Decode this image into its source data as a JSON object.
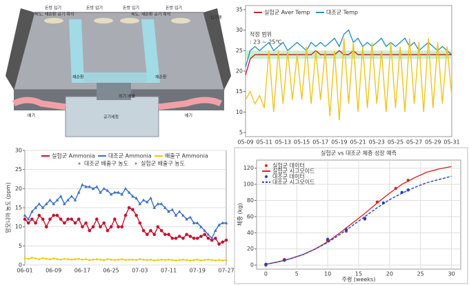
{
  "diagram": {
    "labels": [
      "돈방 입기",
      "돈방 입기",
      "돈방 입기",
      "돈방 입기",
      "복도, 재순환 공기 희석",
      "복도, 재순환 공기 희석",
      "입기팬",
      "재순환",
      "재순환",
      "외기 배출",
      "공기세정",
      "배기",
      "배기"
    ]
  },
  "chart_data": [
    {
      "type": "line",
      "annotation": [
        "적정 범위",
        ": 23 ~ 25℃"
      ],
      "band": [
        23,
        25
      ],
      "legend": "upper left",
      "grid": false,
      "categories": [
        "05-09",
        null,
        null,
        null,
        "05-11",
        null,
        null,
        null,
        "05-13",
        null,
        null,
        null,
        "05-15",
        null,
        null,
        null,
        "05-17",
        null,
        null,
        null,
        "05-19",
        null,
        null,
        null,
        "05-21",
        null,
        null,
        null,
        "05-23",
        null,
        null,
        null,
        "05-25",
        null,
        null,
        null,
        "05-27",
        null,
        null,
        null,
        "05-29",
        null,
        null,
        null,
        "05-31"
      ],
      "ylim": [
        4,
        36
      ],
      "yticks": [
        5,
        10,
        15,
        20,
        25,
        30,
        35
      ],
      "series": [
        {
          "name": "실험군 Aver Temp",
          "color": "#c0282d",
          "values": [
            19,
            23,
            24,
            24,
            24,
            24,
            24,
            24,
            24,
            24,
            24,
            24,
            24,
            24,
            24,
            25,
            24,
            24,
            24,
            24,
            25,
            24,
            24,
            25,
            24,
            24,
            24,
            24,
            24,
            24,
            24,
            24,
            24,
            24,
            24,
            24,
            24,
            24,
            24,
            24,
            24,
            24,
            24,
            24,
            24
          ]
        },
        {
          "name": "대조군 Temp",
          "color": "#2a8fc4",
          "values": [
            21,
            25,
            26,
            25,
            26,
            27,
            25,
            26,
            27,
            25,
            26,
            27,
            26,
            25,
            27,
            26,
            27,
            26,
            27,
            28,
            26,
            29,
            30,
            27,
            28,
            26,
            27,
            26,
            27,
            28,
            26,
            27,
            26,
            27,
            28,
            26,
            27,
            25,
            26,
            27,
            26,
            25,
            26,
            25,
            24
          ]
        },
        {
          "color": "#f0c419",
          "values": [
            13,
            15,
            12,
            14,
            11,
            25,
            10,
            25,
            12,
            25,
            13,
            24,
            13,
            26,
            12,
            25,
            13,
            25,
            9,
            25,
            8,
            28,
            12,
            27,
            10,
            26,
            11,
            27,
            12,
            25,
            10,
            27,
            11,
            26,
            10,
            28,
            12,
            27,
            10,
            28,
            11,
            27,
            12,
            26,
            14
          ]
        }
      ]
    },
    {
      "type": "line",
      "y_label": "암모니아 농도 (ppm)",
      "legend": "top",
      "grid": true,
      "legend_extra": [
        "대조군 배출구 농도",
        "실험군 배출구 농도"
      ],
      "categories": [
        "06-01",
        null,
        null,
        null,
        null,
        null,
        null,
        null,
        "06-09",
        null,
        null,
        null,
        null,
        null,
        null,
        null,
        "06-17",
        null,
        null,
        null,
        null,
        null,
        null,
        null,
        "06-25",
        null,
        null,
        null,
        null,
        null,
        null,
        null,
        "07-03",
        null,
        null,
        null,
        null,
        null,
        null,
        null,
        "07-11",
        null,
        null,
        null,
        null,
        null,
        null,
        null,
        "07-19",
        null,
        null,
        null,
        null,
        null,
        null,
        null,
        "07-27"
      ],
      "ylim": [
        0,
        30
      ],
      "yticks": [
        0,
        5,
        10,
        15,
        20,
        25,
        30
      ],
      "series": [
        {
          "name": "실험군 Ammonia",
          "color": "#c8102e",
          "marker": "circle",
          "values": [
            12,
            11,
            12,
            11,
            13,
            12,
            10,
            12,
            13,
            13,
            12,
            11,
            12,
            12,
            11,
            12,
            10,
            11,
            9,
            10,
            12,
            10,
            11,
            9,
            10,
            12,
            10,
            10,
            13,
            15,
            14.5,
            13,
            11,
            9,
            8,
            9,
            8,
            10,
            9,
            8,
            8,
            7,
            7,
            7.5,
            7,
            8,
            7.5,
            7,
            7,
            7.5,
            8,
            7,
            6.5,
            7,
            5.5,
            6,
            6.5
          ]
        },
        {
          "name": "대조군 Ammonia",
          "color": "#3a6fc4",
          "marker": "triangle",
          "values": [
            13,
            12,
            14,
            15,
            16,
            15,
            16,
            17,
            16,
            17,
            18,
            16,
            17,
            18,
            17,
            19,
            21,
            20.5,
            20.5,
            20,
            20.5,
            19,
            20,
            19.5,
            18.5,
            19,
            19,
            18.5,
            20,
            19,
            18,
            17.5,
            16,
            17,
            16.5,
            17.5,
            15,
            16,
            16,
            15,
            14,
            14.5,
            13,
            14,
            13,
            12,
            12.5,
            11,
            11,
            10,
            9,
            8,
            7,
            9,
            10.5,
            11,
            11
          ]
        },
        {
          "name": "배출구 Ammonia",
          "color": "#f0c800",
          "marker": "dot",
          "values": [
            1.8,
            1.6,
            1.9,
            1.7,
            1.5,
            1.8,
            1.6,
            1.5,
            1.7,
            1.5,
            1.4,
            1.6,
            1.5,
            1.4,
            1.5,
            1.6,
            1.4,
            1.5,
            1.3,
            1.4,
            1.5,
            1.4,
            1.3,
            1.5,
            1.4,
            1.3,
            1.4,
            1.5,
            1.3,
            1.4,
            1.4,
            1.3,
            1.5,
            1.4,
            1.3,
            1.4,
            1.2,
            1.3,
            1.4,
            1.3,
            1.4,
            1.3,
            1.2,
            1.3,
            1.4,
            1.3,
            1.2,
            1.3,
            1.4,
            1.2,
            1.3,
            1.4,
            1.3,
            1.2,
            1.3,
            1.2,
            1.3
          ]
        }
      ]
    },
    {
      "type": "scatter",
      "title": "실험군 vs 대조군 체중 성장 예측",
      "x_label": "주령 (weeks)",
      "y_label": "체중 (kg)",
      "legend": "upper left",
      "grid": true,
      "xlim": [
        -1.5,
        31.5
      ],
      "xticks": [
        0,
        5,
        10,
        15,
        20,
        25,
        30
      ],
      "ylim": [
        -5,
        130
      ],
      "yticks": [
        0,
        20,
        40,
        60,
        80,
        100,
        120
      ],
      "series": [
        {
          "name": "실험군 데이터",
          "color": "#d62728",
          "mode": "markers",
          "x": [
            0,
            3,
            10,
            13,
            16,
            18,
            21,
            23
          ],
          "values": [
            0,
            7,
            30,
            42,
            58,
            78,
            95,
            105
          ]
        },
        {
          "name": "실험군 시그모이드",
          "color": "#d62728",
          "mode": "line",
          "x": [
            0,
            2,
            4,
            6,
            8,
            10,
            12,
            14,
            16,
            18,
            20,
            22,
            24,
            26,
            28,
            30
          ],
          "values": [
            1,
            4,
            8,
            13,
            20,
            29,
            40,
            52,
            64,
            77,
            89,
            100,
            108,
            115,
            119,
            122
          ]
        },
        {
          "name": "대조군 데이터",
          "color": "#1f3fbf",
          "mode": "markers",
          "x": [
            0,
            3,
            10,
            13,
            16,
            19,
            22,
            23
          ],
          "values": [
            1,
            6,
            32,
            44,
            57,
            77,
            90,
            93
          ]
        },
        {
          "name": "대조군 시그모이드",
          "color": "#1f3fbf",
          "mode": "line",
          "dash": true,
          "x": [
            0,
            2,
            4,
            6,
            8,
            10,
            12,
            14,
            16,
            18,
            20,
            22,
            24,
            26,
            28,
            30
          ],
          "values": [
            1,
            4,
            8,
            13,
            20,
            28,
            38,
            49,
            60,
            71,
            81,
            89,
            96,
            102,
            106,
            110
          ]
        }
      ]
    }
  ]
}
